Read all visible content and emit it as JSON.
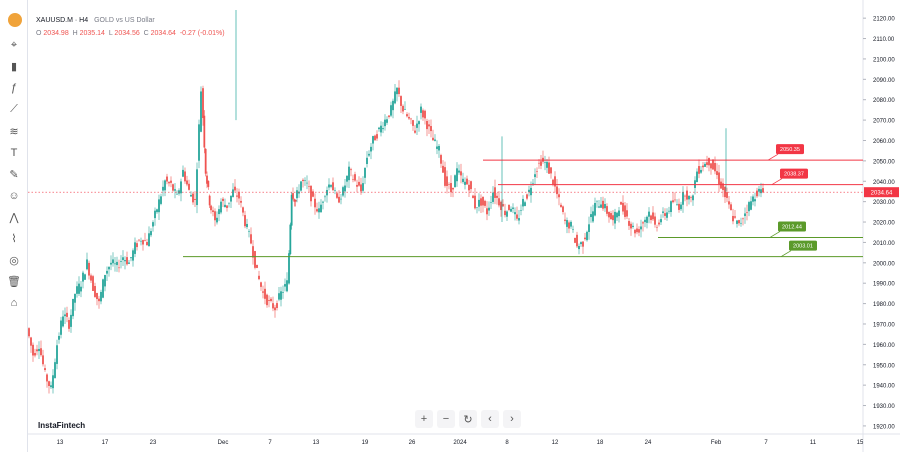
{
  "header": {
    "symbol": "XAUUSD.M · H4",
    "description": "GOLD vs US Dollar",
    "open_label": "O",
    "open": "2034.98",
    "high_label": "H",
    "high": "2035.14",
    "low_label": "L",
    "low": "2034.56",
    "close_label": "C",
    "close": "2034.64",
    "change": "-0.27 (-0.01%)"
  },
  "brand": "InstaFintech",
  "toolbar": {
    "items": [
      "cursor-icon",
      "candles-icon",
      "indicator-icon",
      "trendline-icon",
      "fib-icon",
      "text-icon",
      "brush-icon",
      "emoji-icon",
      "pattern-icon",
      "magnet-icon",
      "hide-icon",
      "trash-icon",
      "camera-icon"
    ]
  },
  "nav": {
    "zoom_in": "+",
    "zoom_out": "−",
    "reset": "↻",
    "prev": "‹",
    "next": "›"
  },
  "colors": {
    "up": "#26a69a",
    "down": "#ef5350",
    "resistance": "#f23645",
    "support": "#5b9a2a",
    "price_line": "#f23645"
  },
  "chart_data": {
    "type": "candlestick",
    "ylim": [
      1918,
      2124
    ],
    "y_ticks": [
      "2120.00",
      "2110.00",
      "2100.00",
      "2090.00",
      "2080.00",
      "2070.00",
      "2060.00",
      "2050.00",
      "2040.00",
      "2030.00",
      "2020.00",
      "2010.00",
      "2000.00",
      "1990.00",
      "1980.00",
      "1970.00",
      "1960.00",
      "1950.00",
      "1940.00",
      "1930.00",
      "1920.00"
    ],
    "x_ticks": [
      "13",
      "17",
      "23",
      "Dec",
      "7",
      "13",
      "19",
      "26",
      "2024",
      "8",
      "12",
      "18",
      "24",
      "Feb",
      "7",
      "11",
      "15"
    ],
    "current_price": "2034.64",
    "levels": [
      {
        "label": "2050.35",
        "value": 2050.35,
        "kind": "resistance"
      },
      {
        "label": "2038.37",
        "value": 2038.37,
        "kind": "resistance"
      },
      {
        "label": "2012.44",
        "value": 2012.44,
        "kind": "support"
      },
      {
        "label": "2003.01",
        "value": 2003.01,
        "kind": "support"
      }
    ],
    "path": [
      [
        0,
        1968
      ],
      [
        6,
        1955
      ],
      [
        12,
        1960
      ],
      [
        18,
        1945
      ],
      [
        24,
        1938
      ],
      [
        30,
        1960
      ],
      [
        36,
        1975
      ],
      [
        42,
        1970
      ],
      [
        48,
        1985
      ],
      [
        54,
        1990
      ],
      [
        60,
        2000
      ],
      [
        66,
        1988
      ],
      [
        72,
        1980
      ],
      [
        78,
        1995
      ],
      [
        84,
        2000
      ],
      [
        90,
        1998
      ],
      [
        96,
        2003
      ],
      [
        102,
        2000
      ],
      [
        108,
        2008
      ],
      [
        114,
        2012
      ],
      [
        120,
        2010
      ],
      [
        126,
        2020
      ],
      [
        132,
        2030
      ],
      [
        138,
        2040
      ],
      [
        144,
        2038
      ],
      [
        150,
        2032
      ],
      [
        156,
        2045
      ],
      [
        162,
        2035
      ],
      [
        168,
        2030
      ],
      [
        174,
        2085
      ],
      [
        178,
        2045
      ],
      [
        182,
        2030
      ],
      [
        188,
        2020
      ],
      [
        194,
        2030
      ],
      [
        200,
        2028
      ],
      [
        206,
        2035
      ],
      [
        212,
        2032
      ],
      [
        218,
        2020
      ],
      [
        224,
        2010
      ],
      [
        230,
        1995
      ],
      [
        236,
        1985
      ],
      [
        242,
        1980
      ],
      [
        248,
        1978
      ],
      [
        254,
        1985
      ],
      [
        260,
        1990
      ],
      [
        264,
        2035
      ],
      [
        268,
        2030
      ],
      [
        274,
        2040
      ],
      [
        280,
        2038
      ],
      [
        286,
        2030
      ],
      [
        292,
        2025
      ],
      [
        298,
        2035
      ],
      [
        304,
        2040
      ],
      [
        310,
        2030
      ],
      [
        316,
        2035
      ],
      [
        322,
        2045
      ],
      [
        328,
        2040
      ],
      [
        334,
        2035
      ],
      [
        340,
        2052
      ],
      [
        346,
        2060
      ],
      [
        352,
        2065
      ],
      [
        358,
        2070
      ],
      [
        364,
        2075
      ],
      [
        370,
        2085
      ],
      [
        376,
        2075
      ],
      [
        382,
        2070
      ],
      [
        388,
        2065
      ],
      [
        394,
        2075
      ],
      [
        400,
        2068
      ],
      [
        406,
        2060
      ],
      [
        412,
        2055
      ],
      [
        418,
        2040
      ],
      [
        424,
        2035
      ],
      [
        430,
        2045
      ],
      [
        436,
        2040
      ],
      [
        442,
        2038
      ],
      [
        448,
        2028
      ],
      [
        454,
        2030
      ],
      [
        460,
        2025
      ],
      [
        466,
        2035
      ],
      [
        472,
        2030
      ],
      [
        478,
        2025
      ],
      [
        484,
        2028
      ],
      [
        490,
        2020
      ],
      [
        496,
        2030
      ],
      [
        502,
        2035
      ],
      [
        508,
        2045
      ],
      [
        514,
        2050
      ],
      [
        520,
        2048
      ],
      [
        526,
        2040
      ],
      [
        532,
        2030
      ],
      [
        538,
        2020
      ],
      [
        544,
        2018
      ],
      [
        550,
        2008
      ],
      [
        556,
        2010
      ],
      [
        562,
        2020
      ],
      [
        568,
        2028
      ],
      [
        574,
        2030
      ],
      [
        580,
        2025
      ],
      [
        586,
        2020
      ],
      [
        592,
        2028
      ],
      [
        598,
        2025
      ],
      [
        604,
        2018
      ],
      [
        610,
        2015
      ],
      [
        616,
        2020
      ],
      [
        622,
        2025
      ],
      [
        628,
        2018
      ],
      [
        634,
        2022
      ],
      [
        640,
        2025
      ],
      [
        646,
        2030
      ],
      [
        652,
        2028
      ],
      [
        658,
        2035
      ],
      [
        664,
        2030
      ],
      [
        670,
        2045
      ],
      [
        676,
        2048
      ],
      [
        682,
        2050
      ],
      [
        688,
        2045
      ],
      [
        694,
        2038
      ],
      [
        700,
        2030
      ],
      [
        706,
        2022
      ],
      [
        712,
        2018
      ],
      [
        718,
        2025
      ],
      [
        724,
        2030
      ],
      [
        730,
        2035
      ],
      [
        736,
        2034.64
      ]
    ]
  }
}
